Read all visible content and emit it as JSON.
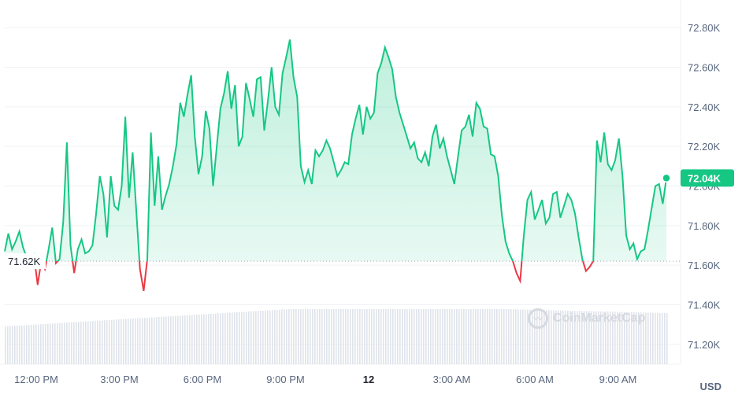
{
  "chart_data": {
    "type": "area",
    "currency": "USD",
    "watermark": "CoinMarketCap",
    "current_value": 72040,
    "current_label": "72.04K",
    "reference_value": 71620,
    "reference_label": "71.62K",
    "ylim": [
      71100,
      72900
    ],
    "y_ticks": [
      71200,
      71400,
      71600,
      71800,
      72000,
      72200,
      72400,
      72600,
      72800
    ],
    "y_tick_labels": [
      "71.20K",
      "71.40K",
      "71.60K",
      "71.80K",
      "72.00K",
      "72.20K",
      "72.40K",
      "72.60K",
      "72.80K"
    ],
    "x_ticks": [
      "12:00 PM",
      "3:00 PM",
      "6:00 PM",
      "9:00 PM",
      "12",
      "3:00 AM",
      "6:00 AM",
      "9:00 AM"
    ],
    "bold_tick": "12",
    "colors": {
      "up": "#16c784",
      "down": "#ea3943"
    },
    "values": [
      71670,
      71760,
      71680,
      71720,
      71770,
      71690,
      71640,
      71610,
      71650,
      71500,
      71620,
      71580,
      71680,
      71790,
      71610,
      71630,
      71820,
      72220,
      71700,
      71560,
      71680,
      71730,
      71660,
      71670,
      71700,
      71860,
      72050,
      71960,
      71740,
      72050,
      71900,
      71880,
      72000,
      72350,
      71940,
      72170,
      71870,
      71580,
      71470,
      71630,
      72270,
      71900,
      72150,
      71880,
      71950,
      72010,
      72100,
      72210,
      72420,
      72350,
      72460,
      72560,
      72250,
      72060,
      72150,
      72380,
      72290,
      72000,
      72200,
      72390,
      72470,
      72580,
      72390,
      72510,
      72200,
      72250,
      72520,
      72440,
      72350,
      72540,
      72550,
      72280,
      72430,
      72600,
      72400,
      72360,
      72570,
      72650,
      72740,
      72550,
      72450,
      72100,
      72020,
      72080,
      72010,
      72180,
      72150,
      72180,
      72230,
      72190,
      72120,
      72050,
      72080,
      72120,
      72110,
      72260,
      72340,
      72410,
      72260,
      72400,
      72340,
      72370,
      72570,
      72620,
      72700,
      72650,
      72590,
      72450,
      72370,
      72310,
      72250,
      72190,
      72220,
      72140,
      72120,
      72170,
      72100,
      72250,
      72310,
      72190,
      72240,
      72150,
      72080,
      72010,
      72150,
      72280,
      72300,
      72360,
      72250,
      72420,
      72390,
      72300,
      72290,
      72160,
      72150,
      72050,
      71850,
      71720,
      71660,
      71620,
      71560,
      71520,
      71750,
      71930,
      71970,
      71830,
      71880,
      71930,
      71810,
      71840,
      71960,
      71970,
      71840,
      71900,
      71960,
      71930,
      71860,
      71740,
      71630,
      71570,
      71590,
      71620,
      72230,
      72120,
      72270,
      72110,
      72080,
      72130,
      72240,
      72050,
      71750,
      71680,
      71710,
      71630,
      71670,
      71680,
      71780,
      71890,
      72000,
      72010,
      71910,
      72040
    ]
  }
}
